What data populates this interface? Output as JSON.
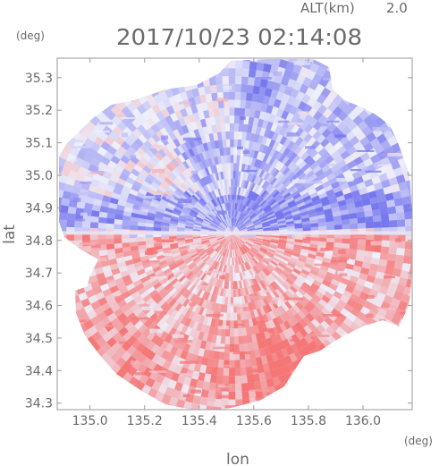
{
  "chart_data": {
    "type": "heatmap",
    "title": "2017/10/23 02:14:08",
    "altitude_label": "ALT(km)",
    "altitude_value": "2.0",
    "xlabel": "lon",
    "ylabel": "lat",
    "x_unit": "(deg)",
    "y_unit": "(deg)",
    "xlim": [
      134.88,
      136.18
    ],
    "ylim": [
      34.28,
      35.36
    ],
    "x_ticks": [
      "135.0",
      "135.2",
      "135.4",
      "135.6",
      "135.8",
      "136.0"
    ],
    "y_ticks": [
      "34.3",
      "34.4",
      "34.5",
      "34.6",
      "34.7",
      "34.8",
      "34.9",
      "35.0",
      "35.1",
      "35.2",
      "35.3"
    ],
    "radar_center": {
      "lon": 135.52,
      "lat": 34.82
    },
    "colors": {
      "positive": "#f47a7a",
      "negative": "#7c7cf0",
      "neutral": "#eef0fb"
    }
  }
}
